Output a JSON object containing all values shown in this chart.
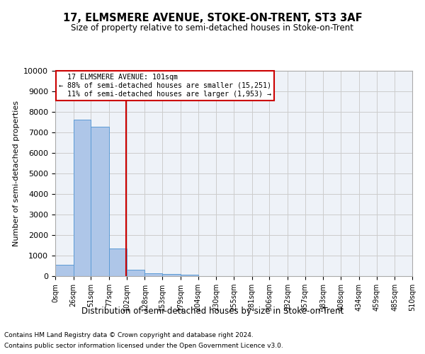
{
  "title": "17, ELMSMERE AVENUE, STOKE-ON-TRENT, ST3 3AF",
  "subtitle": "Size of property relative to semi-detached houses in Stoke-on-Trent",
  "xlabel": "Distribution of semi-detached houses by size in Stoke-on-Trent",
  "ylabel": "Number of semi-detached properties",
  "property_label": "17 ELMSMERE AVENUE: 101sqm",
  "pct_smaller": 88,
  "pct_larger": 11,
  "n_smaller": "15,251",
  "n_larger": "1,953",
  "footnote1": "Contains HM Land Registry data © Crown copyright and database right 2024.",
  "footnote2": "Contains public sector information licensed under the Open Government Licence v3.0.",
  "bin_edges": [
    0,
    26,
    51,
    77,
    102,
    128,
    153,
    179,
    204,
    230,
    255,
    281,
    306,
    332,
    357,
    383,
    408,
    434,
    459,
    485,
    510
  ],
  "bar_heights": [
    560,
    7620,
    7280,
    1360,
    310,
    140,
    105,
    80,
    0,
    0,
    0,
    0,
    0,
    0,
    0,
    0,
    0,
    0,
    0,
    0
  ],
  "bar_color": "#aec6e8",
  "bar_edge_color": "#5b9bd5",
  "vline_color": "#cc0000",
  "vline_x": 101,
  "annotation_box_color": "#cc0000",
  "ylim": [
    0,
    10000
  ],
  "yticks": [
    0,
    1000,
    2000,
    3000,
    4000,
    5000,
    6000,
    7000,
    8000,
    9000,
    10000
  ],
  "grid_color": "#cccccc",
  "background_color": "#eef2f8",
  "tick_labels": [
    "0sqm",
    "26sqm",
    "51sqm",
    "77sqm",
    "102sqm",
    "128sqm",
    "153sqm",
    "179sqm",
    "204sqm",
    "230sqm",
    "255sqm",
    "281sqm",
    "306sqm",
    "332sqm",
    "357sqm",
    "383sqm",
    "408sqm",
    "434sqm",
    "459sqm",
    "485sqm",
    "510sqm"
  ]
}
